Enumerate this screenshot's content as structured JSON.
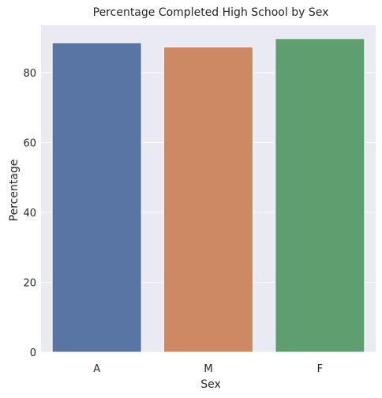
{
  "chart_data": {
    "type": "bar",
    "title": "Percentage Completed High School by Sex",
    "xlabel": "Sex",
    "ylabel": "Percentage",
    "categories": [
      "A",
      "M",
      "F"
    ],
    "values": [
      88.5,
      87.3,
      89.7
    ],
    "colors": [
      "#5975a4",
      "#cc8963",
      "#5f9e6e"
    ],
    "ylim": [
      0,
      93.5
    ],
    "yticks": [
      0,
      20,
      40,
      60,
      80
    ],
    "grid": true,
    "background": "#eaeaf2"
  }
}
